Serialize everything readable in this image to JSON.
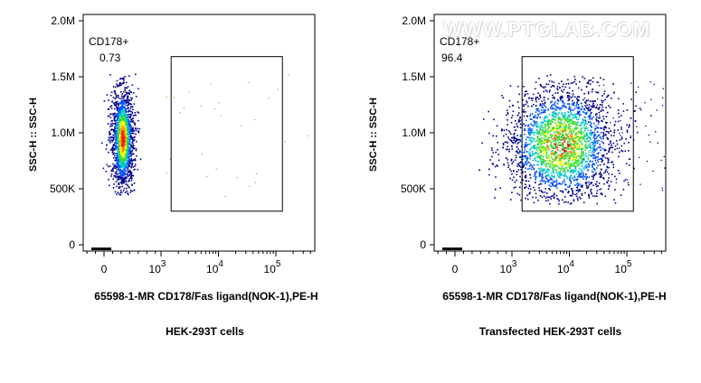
{
  "watermark": "WWW.PTGLAB.COM",
  "charts": [
    {
      "type": "scatter",
      "caption": "HEK-293T cells",
      "xlabel": "65598-1-MR CD178/Fas ligand(NOK-1),PE-H",
      "ylabel": "SSC-H :: SSC-H",
      "x_scale": "biexponential",
      "x_ticks": [
        "0",
        "10^3",
        "10^4",
        "10^5"
      ],
      "y_ticks": [
        "0",
        "500K",
        "1.0M",
        "1.5M",
        "2.0M"
      ],
      "ylim": [
        0,
        2000000
      ],
      "gate": {
        "name": "CD178+",
        "value": "0.73",
        "x_range": [
          1500,
          130000
        ],
        "y_range": [
          300000,
          1680000
        ]
      },
      "population": {
        "x_center": 320,
        "x_spread": "narrow",
        "y_center": 950000,
        "y_range": [
          450000,
          1500000
        ],
        "percent_in_gate": 0.73
      },
      "colors": [
        "#00008b",
        "#0050ff",
        "#00c8c8",
        "#32dc32",
        "#ffff00",
        "#ff8c00",
        "#e61e1e"
      ]
    },
    {
      "type": "scatter",
      "caption": "Transfected HEK-293T cells",
      "xlabel": "65598-1-MR CD178/Fas ligand(NOK-1),PE-H",
      "ylabel": "SSC-H :: SSC-H",
      "x_scale": "biexponential",
      "x_ticks": [
        "0",
        "10^3",
        "10^4",
        "10^5"
      ],
      "y_ticks": [
        "0",
        "500K",
        "1.0M",
        "1.5M",
        "2.0M"
      ],
      "ylim": [
        0,
        2000000
      ],
      "gate": {
        "name": "CD178+",
        "value": "96.4",
        "x_range": [
          1500,
          130000
        ],
        "y_range": [
          300000,
          1680000
        ]
      },
      "population": {
        "x_center": 7000,
        "x_spread": "wide",
        "y_center": 900000,
        "y_range": [
          350000,
          1500000
        ],
        "percent_in_gate": 96.4
      },
      "colors": [
        "#00008b",
        "#0050ff",
        "#00c8c8",
        "#32dc32",
        "#ffff00",
        "#ff8c00",
        "#e61e1e"
      ]
    }
  ]
}
